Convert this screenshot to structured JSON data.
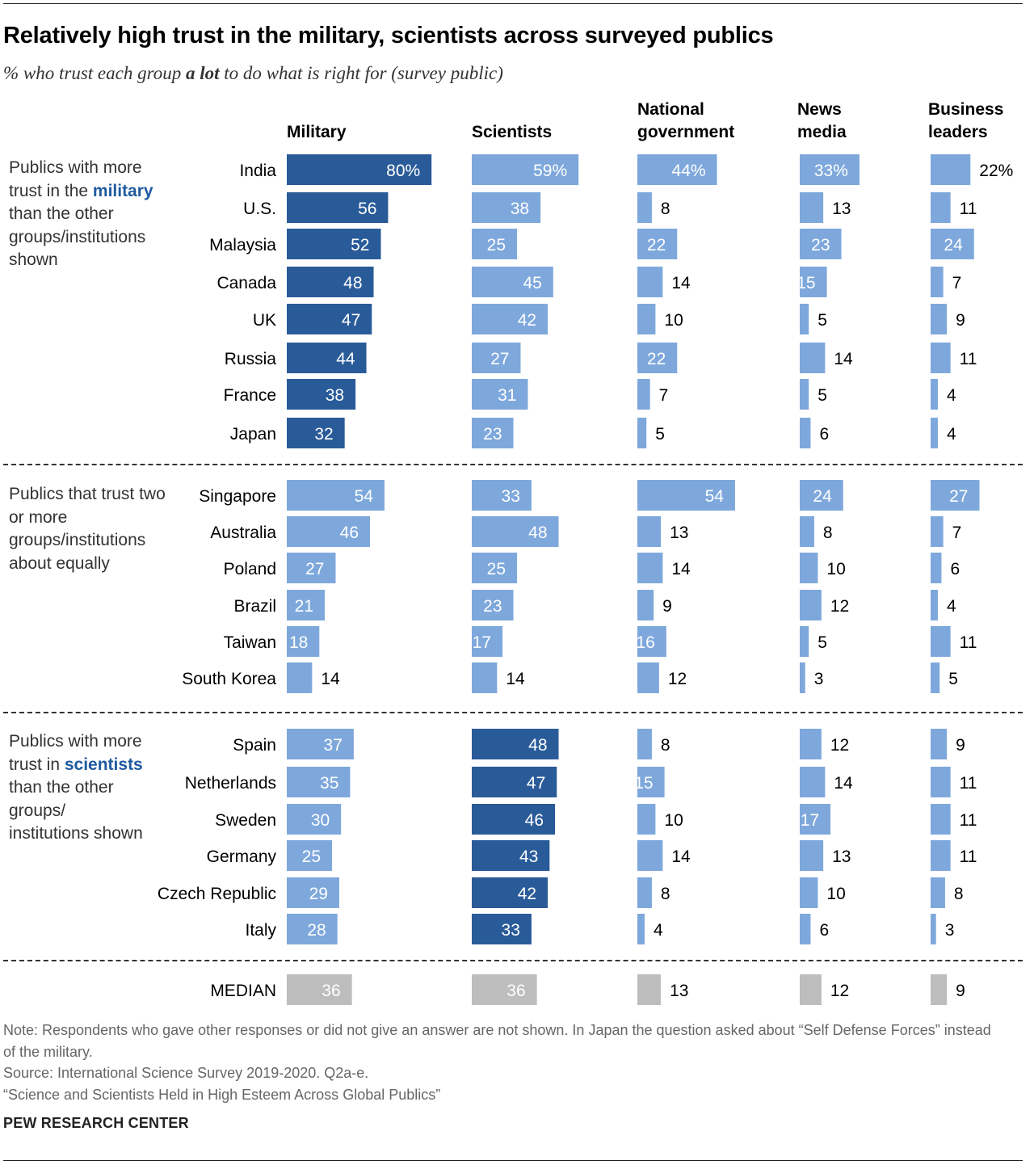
{
  "title": "Relatively high trust in the military, scientists across surveyed publics",
  "subtitle_pre": "% who trust each group ",
  "subtitle_em": "a lot",
  "subtitle_post": " to do what is right for (survey public)",
  "columns": [
    {
      "line1": "",
      "line2": "Military"
    },
    {
      "line1": "",
      "line2": "Scientists"
    },
    {
      "line1": "National",
      "line2": "government"
    },
    {
      "line1": "News",
      "line2": "media"
    },
    {
      "line1": "Business",
      "line2": "leaders"
    }
  ],
  "groups": [
    {
      "pre": "Publics with more trust in the ",
      "hl": "military",
      "post": " than the other groups/institutions shown"
    },
    {
      "pre": "Publics that trust two or more groups/institutions about equally",
      "hl": "",
      "post": ""
    },
    {
      "pre": "Publics with more trust in ",
      "hl": "scientists",
      "post": " than the other groups/ institutions shown"
    }
  ],
  "colors": {
    "dark": "#2a5b99",
    "light": "#7ea8dc",
    "median": "#bdbdbd",
    "highlight_text": "#1f5aa0"
  },
  "chart_data": {
    "type": "bar",
    "series_names": [
      "Military",
      "Scientists",
      "National government",
      "News media",
      "Business leaders"
    ],
    "rows": [
      {
        "country": "India",
        "group": 0,
        "values": [
          80,
          59,
          44,
          33,
          22
        ],
        "labels": [
          "80%",
          "59%",
          "44%",
          "33%",
          "22%"
        ],
        "dark": [
          true,
          false,
          false,
          false,
          false
        ]
      },
      {
        "country": "U.S.",
        "group": 0,
        "values": [
          56,
          38,
          8,
          13,
          11
        ],
        "labels": [
          "56",
          "38",
          "8",
          "13",
          "11"
        ],
        "dark": [
          true,
          false,
          false,
          false,
          false
        ]
      },
      {
        "country": "Malaysia",
        "group": 0,
        "values": [
          52,
          25,
          22,
          23,
          24
        ],
        "labels": [
          "52",
          "25",
          "22",
          "23",
          "24"
        ],
        "dark": [
          true,
          false,
          false,
          false,
          false
        ]
      },
      {
        "country": "Canada",
        "group": 0,
        "values": [
          48,
          45,
          14,
          15,
          7
        ],
        "labels": [
          "48",
          "45",
          "14",
          "15",
          "7"
        ],
        "dark": [
          true,
          false,
          false,
          false,
          false
        ]
      },
      {
        "country": "UK",
        "group": 0,
        "values": [
          47,
          42,
          10,
          5,
          9
        ],
        "labels": [
          "47",
          "42",
          "10",
          "5",
          "9"
        ],
        "dark": [
          true,
          false,
          false,
          false,
          false
        ]
      },
      {
        "country": "Russia",
        "group": 0,
        "values": [
          44,
          27,
          22,
          14,
          11
        ],
        "labels": [
          "44",
          "27",
          "22",
          "14",
          "11"
        ],
        "dark": [
          true,
          false,
          false,
          false,
          false
        ]
      },
      {
        "country": "France",
        "group": 0,
        "values": [
          38,
          31,
          7,
          5,
          4
        ],
        "labels": [
          "38",
          "31",
          "7",
          "5",
          "4"
        ],
        "dark": [
          true,
          false,
          false,
          false,
          false
        ]
      },
      {
        "country": "Japan",
        "group": 0,
        "values": [
          32,
          23,
          5,
          6,
          4
        ],
        "labels": [
          "32",
          "23",
          "5",
          "6",
          "4"
        ],
        "dark": [
          true,
          false,
          false,
          false,
          false
        ]
      },
      {
        "country": "Singapore",
        "group": 1,
        "values": [
          54,
          33,
          54,
          24,
          27
        ],
        "labels": [
          "54",
          "33",
          "54",
          "24",
          "27"
        ],
        "dark": [
          false,
          false,
          false,
          false,
          false
        ]
      },
      {
        "country": "Australia",
        "group": 1,
        "values": [
          46,
          48,
          13,
          8,
          7
        ],
        "labels": [
          "46",
          "48",
          "13",
          "8",
          "7"
        ],
        "dark": [
          false,
          false,
          false,
          false,
          false
        ]
      },
      {
        "country": "Poland",
        "group": 1,
        "values": [
          27,
          25,
          14,
          10,
          6
        ],
        "labels": [
          "27",
          "25",
          "14",
          "10",
          "6"
        ],
        "dark": [
          false,
          false,
          false,
          false,
          false
        ]
      },
      {
        "country": "Brazil",
        "group": 1,
        "values": [
          21,
          23,
          9,
          12,
          4
        ],
        "labels": [
          "21",
          "23",
          "9",
          "12",
          "4"
        ],
        "dark": [
          false,
          false,
          false,
          false,
          false
        ]
      },
      {
        "country": "Taiwan",
        "group": 1,
        "values": [
          18,
          17,
          16,
          5,
          11
        ],
        "labels": [
          "18",
          "17",
          "16",
          "5",
          "11"
        ],
        "dark": [
          false,
          false,
          false,
          false,
          false
        ]
      },
      {
        "country": "South Korea",
        "group": 1,
        "values": [
          14,
          14,
          12,
          3,
          5
        ],
        "labels": [
          "14",
          "14",
          "12",
          "3",
          "5"
        ],
        "dark": [
          false,
          false,
          false,
          false,
          false
        ]
      },
      {
        "country": "Spain",
        "group": 2,
        "values": [
          37,
          48,
          8,
          12,
          9
        ],
        "labels": [
          "37",
          "48",
          "8",
          "12",
          "9"
        ],
        "dark": [
          false,
          true,
          false,
          false,
          false
        ]
      },
      {
        "country": "Netherlands",
        "group": 2,
        "values": [
          35,
          47,
          15,
          14,
          11
        ],
        "labels": [
          "35",
          "47",
          "15",
          "14",
          "11"
        ],
        "dark": [
          false,
          true,
          false,
          false,
          false
        ]
      },
      {
        "country": "Sweden",
        "group": 2,
        "values": [
          30,
          46,
          10,
          17,
          11
        ],
        "labels": [
          "30",
          "46",
          "10",
          "17",
          "11"
        ],
        "dark": [
          false,
          true,
          false,
          false,
          false
        ]
      },
      {
        "country": "Germany",
        "group": 2,
        "values": [
          25,
          43,
          14,
          13,
          11
        ],
        "labels": [
          "25",
          "43",
          "14",
          "13",
          "11"
        ],
        "dark": [
          false,
          true,
          false,
          false,
          false
        ]
      },
      {
        "country": "Czech Republic",
        "group": 2,
        "values": [
          29,
          42,
          8,
          10,
          8
        ],
        "labels": [
          "29",
          "42",
          "8",
          "10",
          "8"
        ],
        "dark": [
          false,
          true,
          false,
          false,
          false
        ]
      },
      {
        "country": "Italy",
        "group": 2,
        "values": [
          28,
          33,
          4,
          6,
          3
        ],
        "labels": [
          "28",
          "33",
          "4",
          "6",
          "3"
        ],
        "dark": [
          false,
          true,
          false,
          false,
          false
        ]
      }
    ],
    "median": {
      "label": "MEDIAN",
      "values": [
        36,
        36,
        13,
        12,
        9
      ],
      "labels": [
        "36",
        "36",
        "13",
        "12",
        "9"
      ]
    }
  },
  "notes": {
    "note": "Note: Respondents who gave other responses or did not give an answer are not shown. In Japan the question asked about “Self Defense Forces” instead of the military.",
    "source": "Source: International Science Survey 2019-2020. Q2a-e.",
    "report": "“Science and Scientists Held in High Esteem Across Global Publics”"
  },
  "brand": "PEW RESEARCH CENTER"
}
